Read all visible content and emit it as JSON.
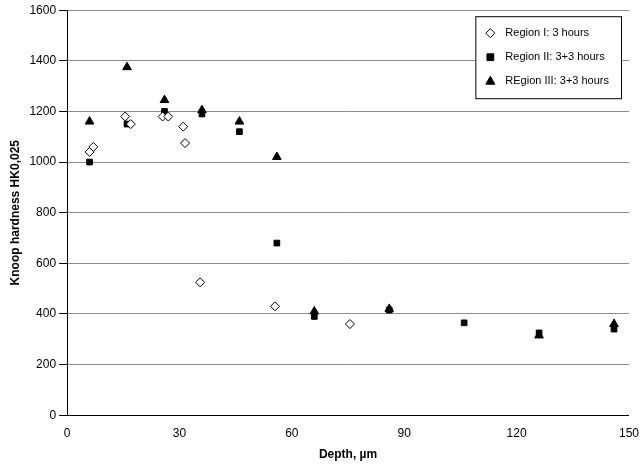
{
  "chart_data": {
    "type": "scatter",
    "x_label": "Depth, µm",
    "y_label": "Knoop hardness HK0,025",
    "xlim": [
      0,
      150
    ],
    "xticks": [
      0,
      30,
      60,
      90,
      120,
      150
    ],
    "ylim": [
      0,
      1600
    ],
    "yticks": [
      0,
      200,
      400,
      600,
      800,
      1000,
      1200,
      1400,
      1600
    ],
    "grid": true,
    "legend": "top-right",
    "series": [
      {
        "name": "Region I: 3 hours",
        "color": "#000000",
        "marker": "diamond_open",
        "x": [
          6,
          7,
          15.5,
          17,
          25.5,
          27,
          31,
          31.5,
          35.5,
          55.5,
          75.5
        ],
        "values": [
          1040,
          1060,
          1180,
          1150,
          1180,
          1180,
          1140,
          1075,
          525,
          430,
          360
        ]
      },
      {
        "name": "Region II: 3+3 hours",
        "color": "#000000",
        "marker": "square",
        "x": [
          6,
          16,
          26,
          36,
          46,
          56,
          66,
          86,
          106,
          126,
          146
        ],
        "values": [
          1000,
          1150,
          1200,
          1190,
          1120,
          680,
          390,
          415,
          365,
          325,
          340
        ]
      },
      {
        "name": "REgion III: 3+3 hours",
        "color": "#000000",
        "marker": "triangle",
        "x": [
          6,
          16,
          26,
          36,
          46,
          56,
          66,
          86,
          126,
          146
        ],
        "values": [
          1160,
          1375,
          1245,
          1205,
          1160,
          1020,
          410,
          420,
          315,
          360
        ]
      }
    ]
  }
}
